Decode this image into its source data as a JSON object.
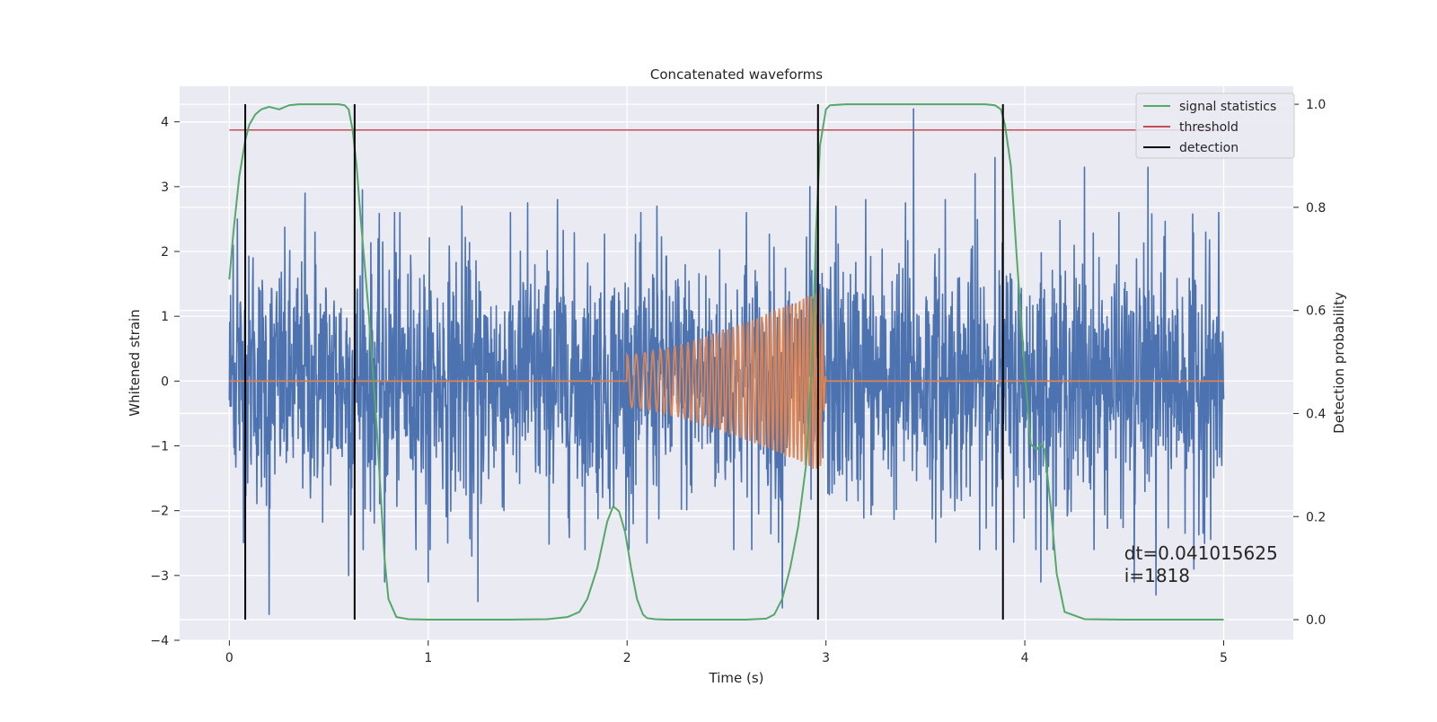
{
  "chart_data": {
    "type": "line",
    "title": "Concatenated waveforms",
    "xlabel": "Time (s)",
    "ylabel_left": "Whitened strain",
    "ylabel_right": "Detection probability",
    "xlim": [
      -0.25,
      5.35
    ],
    "ylim_left": [
      -4.0,
      4.55
    ],
    "ylim_right": [
      -0.04,
      1.035
    ],
    "x_ticks": [
      0,
      1,
      2,
      3,
      4,
      5
    ],
    "y_ticks_left": [
      -4,
      -3,
      -2,
      -1,
      0,
      1,
      2,
      3,
      4
    ],
    "y_ticks_right": [
      0.0,
      0.2,
      0.4,
      0.6,
      0.8,
      1.0
    ],
    "grid": true,
    "legend_position": "top-right",
    "series": [
      {
        "name": "",
        "axis": "left",
        "kind": "noise",
        "color": "#4c72b0",
        "x_range": [
          0,
          5
        ],
        "typical_range": [
          -1.5,
          1.5
        ],
        "peaks": [
          {
            "x": 0.02,
            "y": 2.1
          },
          {
            "x": 0.04,
            "y": 2.5
          },
          {
            "x": 0.12,
            "y": 1.9
          },
          {
            "x": 0.2,
            "y": -3.6
          },
          {
            "x": 0.38,
            "y": 2.9
          },
          {
            "x": 0.43,
            "y": 2.3
          },
          {
            "x": 0.6,
            "y": -3.0
          },
          {
            "x": 0.67,
            "y": 2.95
          },
          {
            "x": 0.78,
            "y": -3.1
          },
          {
            "x": 0.83,
            "y": 2.6
          },
          {
            "x": 1.0,
            "y": -3.1
          },
          {
            "x": 1.17,
            "y": 2.7
          },
          {
            "x": 1.22,
            "y": -2.7
          },
          {
            "x": 1.25,
            "y": -3.4
          },
          {
            "x": 1.5,
            "y": 2.75
          },
          {
            "x": 1.65,
            "y": 2.8
          },
          {
            "x": 2.1,
            "y": -2.5
          },
          {
            "x": 2.15,
            "y": 2.7
          },
          {
            "x": 2.6,
            "y": 2.6
          },
          {
            "x": 2.78,
            "y": -3.5
          },
          {
            "x": 2.92,
            "y": 3.0
          },
          {
            "x": 3.05,
            "y": 2.7
          },
          {
            "x": 3.2,
            "y": 2.8
          },
          {
            "x": 3.4,
            "y": 2.75
          },
          {
            "x": 3.44,
            "y": 4.2
          },
          {
            "x": 3.6,
            "y": 2.8
          },
          {
            "x": 3.75,
            "y": 3.2
          },
          {
            "x": 3.85,
            "y": 3.45
          },
          {
            "x": 4.08,
            "y": -3.1
          },
          {
            "x": 4.3,
            "y": 3.3
          },
          {
            "x": 4.55,
            "y": -3.1
          },
          {
            "x": 4.62,
            "y": 3.3
          },
          {
            "x": 4.66,
            "y": -3.3
          },
          {
            "x": 4.85,
            "y": -2.9
          },
          {
            "x": 4.91,
            "y": 2.3
          }
        ]
      },
      {
        "name": "",
        "axis": "left",
        "kind": "chirp",
        "color": "#dd8452",
        "baseline": 0,
        "chirp_start": 2.0,
        "chirp_end": 3.0,
        "amplitude_start": 0.4,
        "amplitude_peak": 1.45,
        "cycles": 38
      },
      {
        "name": "signal statistics",
        "axis": "right",
        "color": "#55a868",
        "x": [
          0,
          0.02,
          0.05,
          0.08,
          0.1,
          0.13,
          0.16,
          0.2,
          0.25,
          0.3,
          0.35,
          0.4,
          0.45,
          0.5,
          0.55,
          0.58,
          0.6,
          0.62,
          0.64,
          0.66,
          0.7,
          0.74,
          0.78,
          0.8,
          0.84,
          0.9,
          1.0,
          1.2,
          1.4,
          1.6,
          1.7,
          1.76,
          1.8,
          1.85,
          1.9,
          1.93,
          1.96,
          1.99,
          2.02,
          2.05,
          2.08,
          2.1,
          2.14,
          2.2,
          2.4,
          2.6,
          2.7,
          2.74,
          2.78,
          2.82,
          2.86,
          2.9,
          2.93,
          2.95,
          2.97,
          3.0,
          3.02,
          3.1,
          3.3,
          3.5,
          3.7,
          3.8,
          3.85,
          3.88,
          3.9,
          3.93,
          3.96,
          4.0,
          4.03,
          4.06,
          4.08,
          4.1,
          4.13,
          4.16,
          4.2,
          4.3,
          4.5,
          4.7,
          4.9,
          5.0
        ],
        "y": [
          0.66,
          0.75,
          0.86,
          0.93,
          0.96,
          0.98,
          0.99,
          0.995,
          0.99,
          0.998,
          1.0,
          1.0,
          1.0,
          1.0,
          1.0,
          0.998,
          0.99,
          0.95,
          0.88,
          0.78,
          0.6,
          0.38,
          0.12,
          0.04,
          0.005,
          0.001,
          0.0,
          0.0,
          0.0,
          0.001,
          0.005,
          0.015,
          0.04,
          0.1,
          0.19,
          0.22,
          0.21,
          0.17,
          0.1,
          0.04,
          0.01,
          0.003,
          0.001,
          0.0,
          0.0,
          0.0,
          0.002,
          0.01,
          0.04,
          0.1,
          0.18,
          0.3,
          0.5,
          0.75,
          0.92,
          0.99,
          0.998,
          1.0,
          1.0,
          1.0,
          1.0,
          1.0,
          0.998,
          0.99,
          0.96,
          0.88,
          0.7,
          0.48,
          0.34,
          0.33,
          0.34,
          0.33,
          0.22,
          0.09,
          0.015,
          0.001,
          0.0,
          0.0,
          0.0,
          0.0
        ]
      },
      {
        "name": "threshold",
        "axis": "right",
        "color": "#c44e52",
        "x": [
          0,
          5
        ],
        "y": [
          0.95,
          0.95
        ]
      },
      {
        "name": "detection",
        "axis": "right",
        "color": "#000000",
        "vlines": [
          0.08,
          0.63,
          2.96,
          3.89
        ],
        "y_range": [
          0,
          1.0
        ]
      }
    ],
    "annotations": [
      {
        "text": "dt=0.041015625",
        "x": 4.5,
        "y": -2.75
      },
      {
        "text": "i=1818",
        "x": 4.5,
        "y": -3.1
      }
    ]
  }
}
